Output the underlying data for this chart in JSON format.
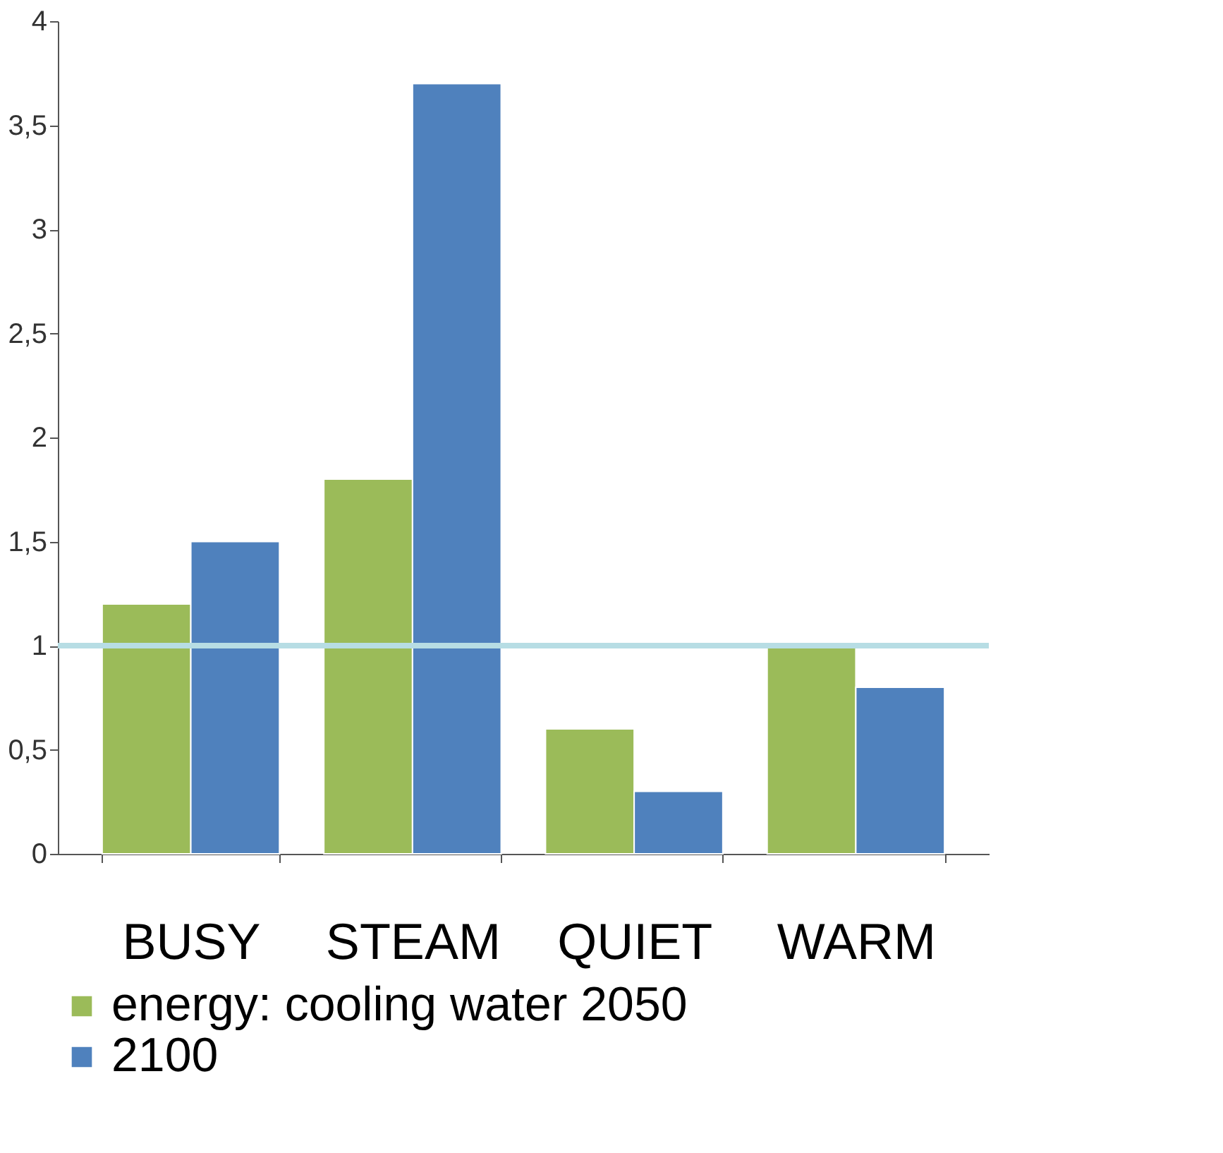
{
  "chart_data": {
    "type": "bar",
    "categories": [
      "BUSY",
      "STEAM",
      "QUIET",
      "WARM"
    ],
    "series": [
      {
        "name": "energy: cooling water 2050",
        "color": "#9bbb59",
        "values": [
          1.2,
          1.8,
          0.6,
          1.0
        ]
      },
      {
        "name": "2100",
        "color": "#4f81bd",
        "values": [
          1.5,
          3.7,
          0.3,
          0.8
        ]
      }
    ],
    "ylim": [
      0,
      4
    ],
    "yticks": [
      0,
      {
        "value": 0.5,
        "label": "0,5"
      },
      1,
      {
        "value": 1.5,
        "label": "1,5"
      },
      2,
      {
        "value": 2.5,
        "label": "2,5"
      },
      3,
      {
        "value": 3.5,
        "label": "3,5"
      },
      4
    ],
    "ref_lines": [
      {
        "axis": "y",
        "value": 1,
        "color": "#b7dde4"
      }
    ],
    "grid": false,
    "legend": "bottom"
  }
}
